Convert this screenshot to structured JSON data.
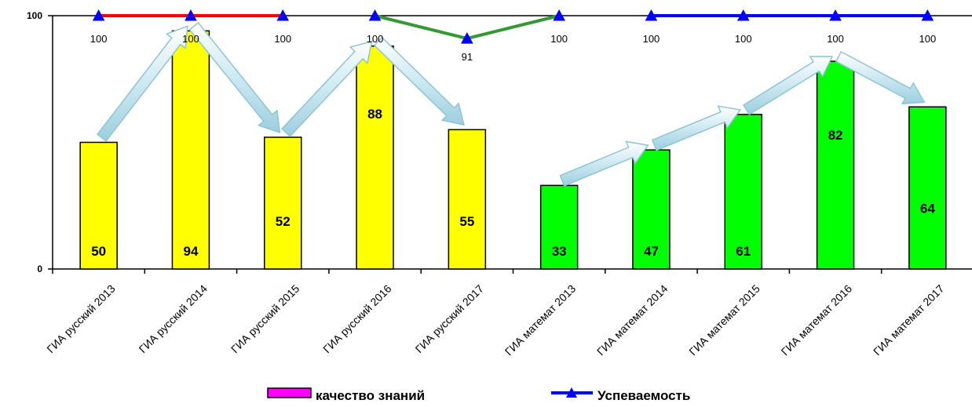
{
  "chart_data": {
    "type": "bar",
    "categories": [
      "ГИА русский 2013",
      "ГИА русский 2014",
      "ГИА русский 2015",
      "ГИА русский 2016",
      "ГИА русский 2017",
      "ГИА математ 2013",
      "ГИА математ 2014",
      "ГИА математ 2015",
      "ГИА математ 2016",
      "ГИА математ 2017"
    ],
    "series": [
      {
        "name": "качество знаний",
        "kind": "bar",
        "values": [
          50,
          94,
          52,
          88,
          55,
          33,
          47,
          61,
          82,
          64
        ],
        "colors": [
          "#ffff00",
          "#ffff00",
          "#ffff00",
          "#ffff00",
          "#ffff00",
          "#00ff00",
          "#00ff00",
          "#00ff00",
          "#00ff00",
          "#00ff00"
        ],
        "legend_color": "#ff00ff"
      },
      {
        "name": "Успеваемость",
        "kind": "line",
        "values": [
          100,
          100,
          100,
          100,
          91,
          100,
          100,
          100,
          100,
          100
        ],
        "segment_colors": [
          "#ff0000",
          "#ff0000",
          "#00000000",
          "#339933",
          "#339933",
          "#00000000",
          "#0000ff",
          "#0000ff",
          "#0000ff"
        ],
        "legend_color": "#0000ff"
      }
    ],
    "ylim": [
      0,
      100
    ],
    "yticks": [
      "0",
      "100"
    ],
    "legend_position": "bottom",
    "trend_arrows": true
  }
}
